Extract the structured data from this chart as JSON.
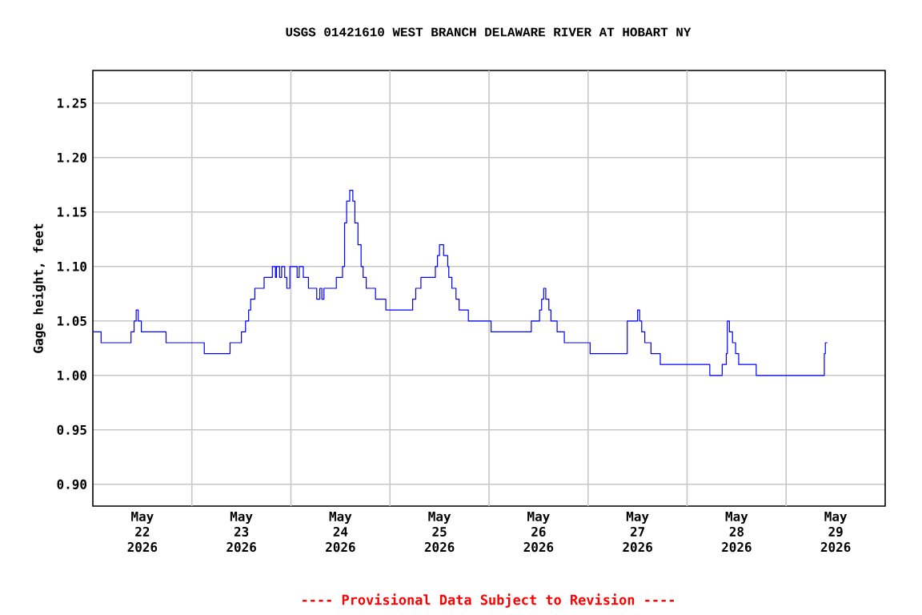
{
  "chart_data": {
    "type": "step",
    "title": "USGS 01421610 WEST BRANCH DELAWARE RIVER AT HOBART NY",
    "ylabel": "Gage height, feet",
    "annotations": [
      "---- Provisional Data Subject to Revision ----"
    ],
    "xlim": [
      "2026-05-22T00:00",
      "2026-05-30T00:00"
    ],
    "xticks": [
      {
        "value": "2026-05-22T12:00",
        "label": "May 22 2026"
      },
      {
        "value": "2026-05-23T12:00",
        "label": "May 23 2026"
      },
      {
        "value": "2026-05-24T12:00",
        "label": "May 24 2026"
      },
      {
        "value": "2026-05-25T12:00",
        "label": "May 25 2026"
      },
      {
        "value": "2026-05-26T12:00",
        "label": "May 26 2026"
      },
      {
        "value": "2026-05-27T12:00",
        "label": "May 27 2026"
      },
      {
        "value": "2026-05-28T12:00",
        "label": "May 28 2026"
      },
      {
        "value": "2026-05-29T12:00",
        "label": "May 29 2026"
      },
      {
        "value": "2026-05-23T00:00",
        "label": null
      },
      {
        "value": "2026-05-24T00:00",
        "label": null
      },
      {
        "value": "2026-05-25T00:00",
        "label": null
      },
      {
        "value": "2026-05-26T00:00",
        "label": null
      },
      {
        "value": "2026-05-27T00:00",
        "label": null
      },
      {
        "value": "2026-05-28T00:00",
        "label": null
      },
      {
        "value": "2026-05-29T00:00",
        "label": null
      }
    ],
    "ylim": [
      0.88,
      1.28
    ],
    "yticks": [
      {
        "value": 0.9,
        "label": "0.90"
      },
      {
        "value": 0.95,
        "label": "0.95"
      },
      {
        "value": 1.0,
        "label": "1.00"
      },
      {
        "value": 1.05,
        "label": "1.05"
      },
      {
        "value": 1.1,
        "label": "1.10"
      },
      {
        "value": 1.15,
        "label": "1.15"
      },
      {
        "value": 1.2,
        "label": "1.20"
      },
      {
        "value": 1.25,
        "label": "1.25"
      }
    ],
    "grid": true,
    "series": [
      {
        "color": "#0000ff",
        "x": [
          "2026-05-22T00:00",
          "2026-05-22T02:00",
          "2026-05-22T09:15",
          "2026-05-22T10:00",
          "2026-05-22T10:30",
          "2026-05-22T11:00",
          "2026-05-22T11:45",
          "2026-05-22T17:45",
          "2026-05-23T03:00",
          "2026-05-23T09:15",
          "2026-05-23T12:00",
          "2026-05-23T13:00",
          "2026-05-23T13:45",
          "2026-05-23T14:15",
          "2026-05-23T15:15",
          "2026-05-23T17:30",
          "2026-05-23T19:30",
          "2026-05-23T20:15",
          "2026-05-23T20:30",
          "2026-05-23T21:15",
          "2026-05-23T21:45",
          "2026-05-23T22:30",
          "2026-05-23T23:00",
          "2026-05-23T23:45",
          "2026-05-24T01:30",
          "2026-05-24T02:00",
          "2026-05-24T03:00",
          "2026-05-24T04:15",
          "2026-05-24T06:15",
          "2026-05-24T07:00",
          "2026-05-24T07:30",
          "2026-05-24T08:00",
          "2026-05-24T11:00",
          "2026-05-24T12:30",
          "2026-05-24T13:00",
          "2026-05-24T13:30",
          "2026-05-24T14:15",
          "2026-05-24T15:00",
          "2026-05-24T15:30",
          "2026-05-24T16:15",
          "2026-05-24T17:00",
          "2026-05-24T17:30",
          "2026-05-24T18:15",
          "2026-05-24T20:30",
          "2026-05-24T23:00",
          "2026-05-25T05:30",
          "2026-05-25T06:15",
          "2026-05-25T07:30",
          "2026-05-25T11:00",
          "2026-05-25T11:30",
          "2026-05-25T12:00",
          "2026-05-25T13:00",
          "2026-05-25T14:00",
          "2026-05-25T14:15",
          "2026-05-25T15:00",
          "2026-05-25T16:00",
          "2026-05-25T16:45",
          "2026-05-25T19:00",
          "2026-05-26T00:30",
          "2026-05-26T10:15",
          "2026-05-26T12:15",
          "2026-05-26T12:45",
          "2026-05-26T13:15",
          "2026-05-26T13:45",
          "2026-05-26T14:30",
          "2026-05-26T15:00",
          "2026-05-26T16:30",
          "2026-05-26T18:15",
          "2026-05-27T00:30",
          "2026-05-27T09:30",
          "2026-05-27T12:00",
          "2026-05-27T12:30",
          "2026-05-27T13:00",
          "2026-05-27T13:45",
          "2026-05-27T15:15",
          "2026-05-27T17:30",
          "2026-05-28T05:30",
          "2026-05-28T08:30",
          "2026-05-28T09:30",
          "2026-05-28T09:45",
          "2026-05-28T10:15",
          "2026-05-28T11:00",
          "2026-05-28T11:45",
          "2026-05-28T12:30",
          "2026-05-28T16:45",
          "2026-05-29T09:15",
          "2026-05-29T09:30",
          "2026-05-29T10:00"
        ],
        "values": [
          1.04,
          1.03,
          1.04,
          1.05,
          1.06,
          1.05,
          1.04,
          1.03,
          1.02,
          1.03,
          1.04,
          1.05,
          1.06,
          1.07,
          1.08,
          1.09,
          1.1,
          1.09,
          1.1,
          1.09,
          1.1,
          1.09,
          1.08,
          1.1,
          1.09,
          1.1,
          1.09,
          1.08,
          1.07,
          1.08,
          1.07,
          1.08,
          1.09,
          1.1,
          1.14,
          1.16,
          1.17,
          1.16,
          1.14,
          1.12,
          1.1,
          1.09,
          1.08,
          1.07,
          1.06,
          1.07,
          1.08,
          1.09,
          1.1,
          1.11,
          1.12,
          1.11,
          1.1,
          1.09,
          1.08,
          1.07,
          1.06,
          1.05,
          1.04,
          1.05,
          1.06,
          1.07,
          1.08,
          1.07,
          1.06,
          1.05,
          1.04,
          1.03,
          1.02,
          1.05,
          1.06,
          1.05,
          1.04,
          1.03,
          1.02,
          1.01,
          1.0,
          1.01,
          1.02,
          1.05,
          1.04,
          1.03,
          1.02,
          1.01,
          1.0,
          1.02,
          1.03,
          1.03
        ]
      }
    ]
  }
}
